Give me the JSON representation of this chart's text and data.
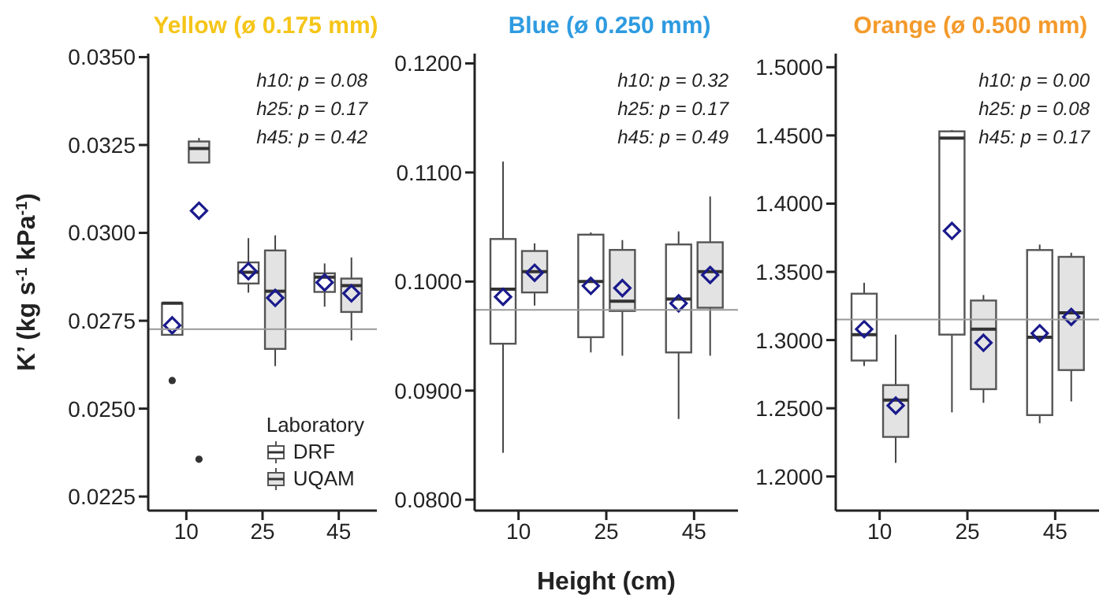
{
  "chart_data": [
    {
      "type": "box",
      "title": "Yellow (ø 0.175 mm)",
      "ylabel": "K’ (kg s$^{-1}$ kPa$^{-1}$)",
      "categories": [
        "10",
        "25",
        "45"
      ],
      "series": [
        {
          "name": "DRF",
          "color": "#ffffff",
          "boxes": [
            {
              "low": 0.0271,
              "q1": 0.0271,
              "median": 0.028,
              "q3": 0.028,
              "high": 0.028,
              "mean": 0.02737,
              "outliers": [
                0.0258
              ]
            },
            {
              "low": 0.0283,
              "q1": 0.02856,
              "median": 0.02888,
              "q3": 0.02916,
              "high": 0.02985,
              "mean": 0.02891
            },
            {
              "low": 0.0279,
              "q1": 0.02832,
              "median": 0.02874,
              "q3": 0.02885,
              "high": 0.02913,
              "mean": 0.02859
            }
          ]
        },
        {
          "name": "UQAM",
          "color": "#e3e3e3",
          "boxes": [
            {
              "low": 0.032,
              "q1": 0.032,
              "median": 0.0324,
              "q3": 0.0326,
              "high": 0.0327,
              "mean": 0.03063,
              "outliers": [
                0.02356
              ]
            },
            {
              "low": 0.02621,
              "q1": 0.0267,
              "median": 0.02834,
              "q3": 0.0295,
              "high": 0.02993,
              "mean": 0.02815
            },
            {
              "low": 0.02694,
              "q1": 0.02775,
              "median": 0.0285,
              "q3": 0.0287,
              "high": 0.0293,
              "mean": 0.02828
            }
          ]
        }
      ],
      "ylim": [
        0.0221,
        0.0351
      ],
      "yticks": [
        {
          "value": 0.0225,
          "label": "0.0225"
        },
        {
          "value": 0.025,
          "label": "0.0250"
        },
        {
          "value": 0.0275,
          "label": "0.0275"
        },
        {
          "value": 0.03,
          "label": "0.0300"
        },
        {
          "value": 0.0325,
          "label": "0.0325"
        },
        {
          "value": 0.035,
          "label": "0.0350"
        }
      ],
      "ref_lines": [
        {
          "axis": "y",
          "value": 0.02726,
          "color": "#999999"
        }
      ],
      "annotations": [
        "h10: p = 0.08",
        "h25: p = 0.17",
        "h45: p = 0.42"
      ],
      "legend": "bottom right",
      "legend_title": "Laboratory",
      "grid": false
    },
    {
      "type": "box",
      "title": "Blue (ø 0.250 mm)",
      "xlabel": "Height (cm)",
      "categories": [
        "10",
        "25",
        "45"
      ],
      "series": [
        {
          "color": "#ffffff",
          "boxes": [
            {
              "low": 0.0843,
              "q1": 0.0943,
              "median": 0.0993,
              "q3": 0.1039,
              "high": 0.111,
              "mean": 0.0986
            },
            {
              "low": 0.0935,
              "q1": 0.0949,
              "median": 0.1,
              "q3": 0.1043,
              "high": 0.1045,
              "mean": 0.0996
            },
            {
              "low": 0.0874,
              "q1": 0.0935,
              "median": 0.0984,
              "q3": 0.1034,
              "high": 0.1046,
              "mean": 0.098
            }
          ]
        },
        {
          "color": "#e3e3e3",
          "boxes": [
            {
              "low": 0.0978,
              "q1": 0.099,
              "median": 0.1009,
              "q3": 0.1028,
              "high": 0.1035,
              "mean": 0.1008
            },
            {
              "low": 0.0932,
              "q1": 0.0973,
              "median": 0.0982,
              "q3": 0.1029,
              "high": 0.1038,
              "mean": 0.0994
            },
            {
              "low": 0.0932,
              "q1": 0.0976,
              "median": 0.1009,
              "q3": 0.1036,
              "high": 0.1078,
              "mean": 0.1006
            }
          ]
        }
      ],
      "ylim": [
        0.079,
        0.1209
      ],
      "yticks": [
        {
          "value": 0.08,
          "label": "0.0800"
        },
        {
          "value": 0.09,
          "label": "0.0900"
        },
        {
          "value": 0.1,
          "label": "0.1000"
        },
        {
          "value": 0.11,
          "label": "0.1100"
        },
        {
          "value": 0.12,
          "label": "0.1200"
        }
      ],
      "ref_lines": [
        {
          "axis": "y",
          "value": 0.0974,
          "color": "#999999"
        }
      ],
      "annotations": [
        "h10: p = 0.32",
        "h25: p = 0.17",
        "h45: p = 0.49"
      ],
      "grid": false
    },
    {
      "type": "box",
      "title": "Orange (ø 0.500 mm)",
      "categories": [
        "10",
        "25",
        "45"
      ],
      "series": [
        {
          "color": "#ffffff",
          "boxes": [
            {
              "low": 1.281,
              "q1": 1.285,
              "median": 1.304,
              "q3": 1.334,
              "high": 1.342,
              "mean": 1.308
            },
            {
              "low": 1.247,
              "q1": 1.304,
              "median": 1.448,
              "q3": 1.453,
              "high": 1.454,
              "mean": 1.38
            },
            {
              "low": 1.239,
              "q1": 1.245,
              "median": 1.302,
              "q3": 1.366,
              "high": 1.37,
              "mean": 1.305
            }
          ]
        },
        {
          "color": "#e3e3e3",
          "boxes": [
            {
              "low": 1.21,
              "q1": 1.229,
              "median": 1.256,
              "q3": 1.267,
              "high": 1.304,
              "mean": 1.252
            },
            {
              "low": 1.254,
              "q1": 1.264,
              "median": 1.308,
              "q3": 1.329,
              "high": 1.333,
              "mean": 1.298
            },
            {
              "low": 1.255,
              "q1": 1.278,
              "median": 1.32,
              "q3": 1.361,
              "high": 1.364,
              "mean": 1.317
            }
          ]
        }
      ],
      "ylim": [
        1.175,
        1.51
      ],
      "yticks": [
        {
          "value": 1.2,
          "label": "1.2000"
        },
        {
          "value": 1.25,
          "label": "1.2500"
        },
        {
          "value": 1.3,
          "label": "1.3000"
        },
        {
          "value": 1.35,
          "label": "1.3500"
        },
        {
          "value": 1.4,
          "label": "1.4000"
        },
        {
          "value": 1.45,
          "label": "1.4500"
        },
        {
          "value": 1.5,
          "label": "1.5000"
        }
      ],
      "ref_lines": [
        {
          "axis": "y",
          "value": 1.3151,
          "color": "#999999"
        }
      ],
      "annotations": [
        "h10: p = 0.00",
        "h25: p = 0.08",
        "h45: p = 0.17"
      ],
      "grid": false
    }
  ]
}
